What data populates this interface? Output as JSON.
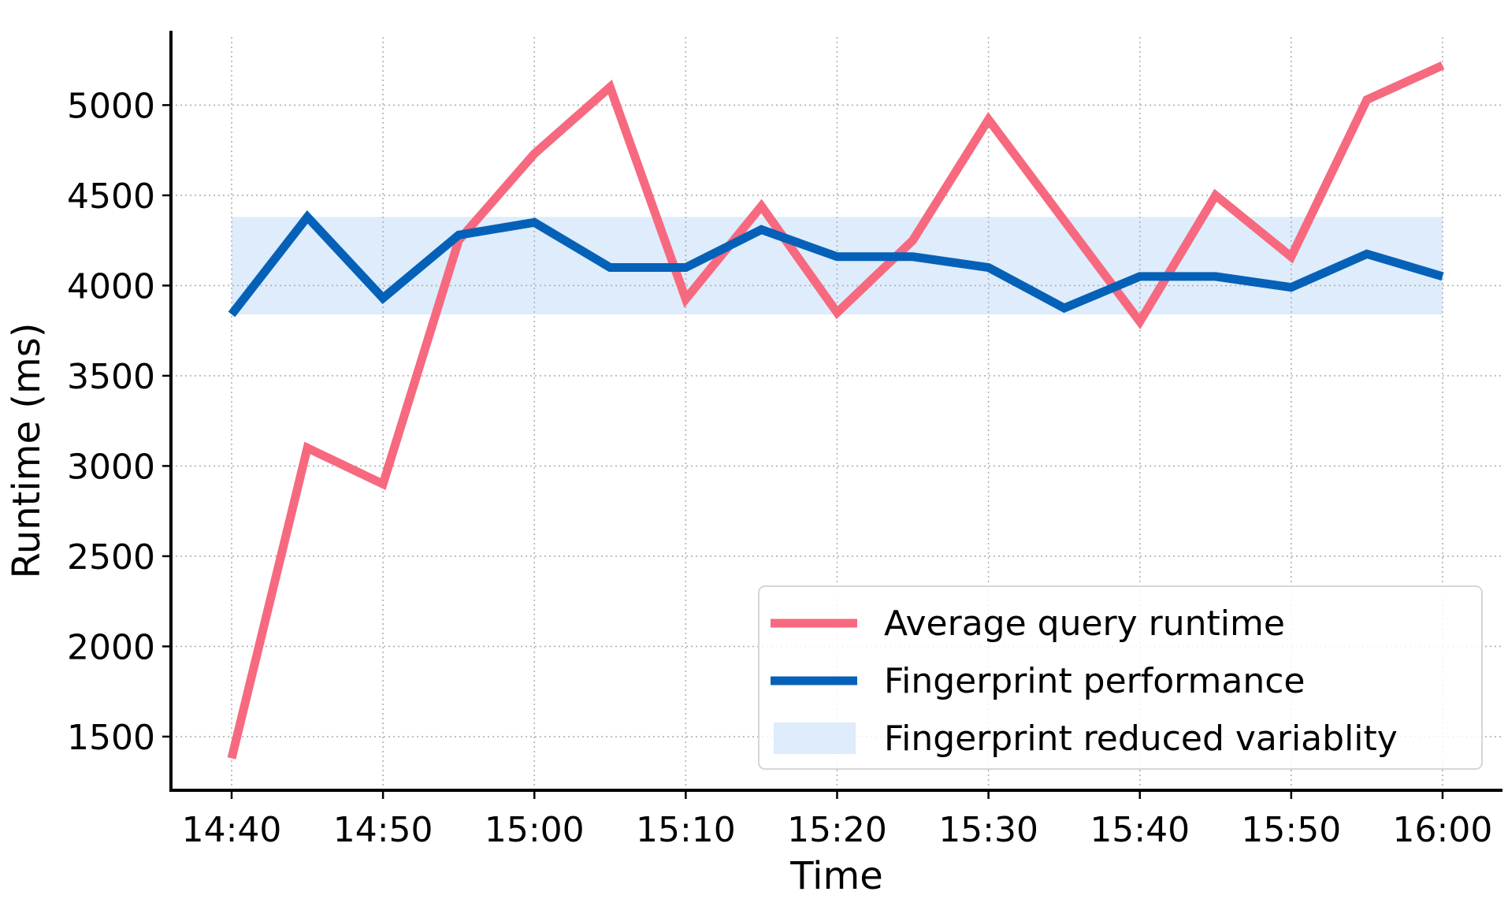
{
  "chart_data": {
    "type": "line",
    "title": "",
    "xlabel": "Time",
    "ylabel": "Runtime (ms)",
    "x": [
      "14:40",
      "14:45",
      "14:50",
      "14:55",
      "15:00",
      "15:05",
      "15:10",
      "15:15",
      "15:20",
      "15:25",
      "15:30",
      "15:35",
      "15:40",
      "15:45",
      "15:50",
      "15:55",
      "16:00"
    ],
    "x_tick_labels": [
      "14:40",
      "14:50",
      "15:00",
      "15:10",
      "15:20",
      "15:30",
      "15:40",
      "15:50",
      "16:00"
    ],
    "y_ticks": [
      1500,
      2000,
      2500,
      3000,
      3500,
      4000,
      4500,
      5000
    ],
    "ylim": [
      1250,
      5400
    ],
    "grid": true,
    "grid_style": "dotted",
    "legend_position": "lower right",
    "series": [
      {
        "name": "Average query runtime",
        "color": "#f7697f",
        "values": [
          1380,
          3100,
          2900,
          4250,
          4730,
          5100,
          3925,
          4440,
          3850,
          4250,
          4920,
          4360,
          3800,
          4500,
          4160,
          5030,
          5220
        ]
      },
      {
        "name": "Fingerprint performance",
        "color": "#0561b8",
        "values": [
          3840,
          4380,
          3930,
          4280,
          4350,
          4100,
          4100,
          4310,
          4160,
          4160,
          4100,
          3875,
          4050,
          4050,
          3990,
          4175,
          4050
        ]
      }
    ],
    "bands": [
      {
        "name": "Fingerprint reduced variablity",
        "color": "#deecfb",
        "y_low": 3840,
        "y_high": 4380,
        "x_start": "14:40",
        "x_end": "16:00"
      }
    ]
  }
}
